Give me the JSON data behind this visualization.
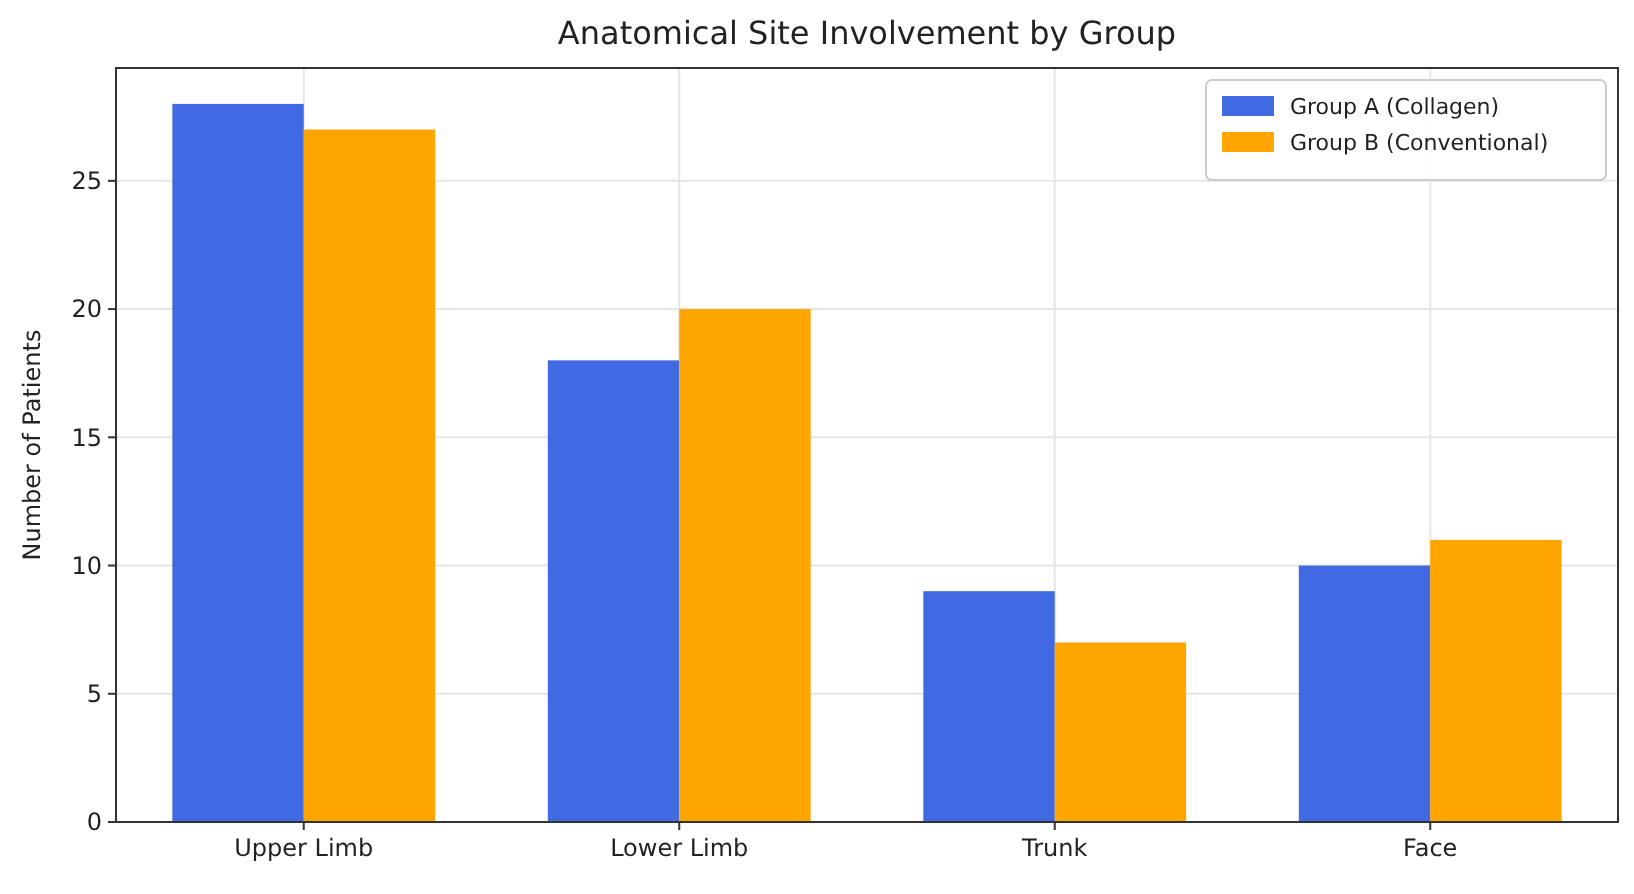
{
  "chart_data": {
    "type": "bar",
    "title": "Anatomical Site Involvement by Group",
    "ylabel": "Number of Patients",
    "categories": [
      "Upper Limb",
      "Lower Limb",
      "Trunk",
      "Face"
    ],
    "series": [
      {
        "name": "Group A (Collagen)",
        "color": "#4169e1",
        "values": [
          28,
          18,
          9,
          10
        ]
      },
      {
        "name": "Group B (Conventional)",
        "color": "#ffa500",
        "values": [
          27,
          20,
          7,
          11
        ]
      }
    ],
    "ylim": [
      0,
      29.4
    ],
    "yticks": [
      0,
      5,
      10,
      15,
      20,
      25
    ],
    "grid": true,
    "legend": "top right"
  }
}
